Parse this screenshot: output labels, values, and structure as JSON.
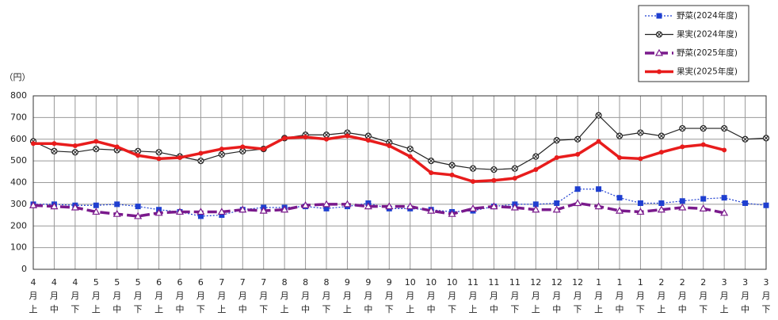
{
  "chart_data": {
    "type": "line",
    "y_unit_label": "（円）",
    "categories": [
      "4月上",
      "4月中",
      "4月下",
      "5月上",
      "5月中",
      "5月下",
      "6月上",
      "6月中",
      "6月下",
      "7月上",
      "7月中",
      "7月下",
      "8月上",
      "8月中",
      "8月下",
      "9月上",
      "9月中",
      "9月下",
      "10月上",
      "10月中",
      "10月下",
      "11月上",
      "11月中",
      "11月下",
      "12月上",
      "12月中",
      "12月下",
      "1月上",
      "1月中",
      "1月下",
      "2月上",
      "2月中",
      "2月下",
      "3月上",
      "3月中",
      "3月下"
    ],
    "ylim": [
      0,
      800
    ],
    "yticks": [
      0,
      100,
      200,
      300,
      400,
      500,
      600,
      700,
      800
    ],
    "grid": true,
    "legend": "top-right",
    "series": [
      {
        "name": "野菜(2024年度)",
        "color": "#1f3fd0",
        "marker": "square",
        "line_style": "dotted",
        "values": [
          300,
          300,
          295,
          295,
          300,
          290,
          275,
          265,
          245,
          250,
          275,
          285,
          285,
          290,
          280,
          290,
          305,
          280,
          280,
          275,
          265,
          270,
          290,
          300,
          300,
          305,
          370,
          370,
          330,
          305,
          305,
          315,
          325,
          330,
          305,
          295
        ]
      },
      {
        "name": "果実(2024年度)",
        "color": "#222222",
        "marker": "cross-circle",
        "line_style": "solid",
        "values": [
          590,
          545,
          540,
          555,
          550,
          545,
          540,
          520,
          500,
          530,
          545,
          555,
          605,
          620,
          620,
          630,
          615,
          585,
          555,
          500,
          480,
          465,
          460,
          465,
          520,
          595,
          600,
          710,
          615,
          630,
          615,
          650,
          650,
          650,
          600,
          605
        ]
      },
      {
        "name": "野菜(2025年度)",
        "color": "#7a1a8c",
        "marker": "triangle",
        "line_style": "dashed",
        "values": [
          295,
          290,
          285,
          265,
          255,
          245,
          260,
          265,
          265,
          265,
          275,
          270,
          275,
          295,
          300,
          300,
          290,
          290,
          290,
          270,
          255,
          280,
          290,
          285,
          275,
          275,
          305,
          290,
          270,
          265,
          275,
          285,
          280,
          260,
          null,
          null
        ]
      },
      {
        "name": "果実(2025年度)",
        "color": "#e81c1c",
        "marker": "circle",
        "line_style": "thick",
        "values": [
          580,
          580,
          570,
          590,
          565,
          525,
          510,
          515,
          535,
          555,
          565,
          555,
          605,
          610,
          600,
          615,
          595,
          570,
          520,
          445,
          435,
          405,
          410,
          420,
          460,
          515,
          530,
          590,
          515,
          510,
          540,
          565,
          575,
          550,
          null,
          null
        ]
      }
    ]
  }
}
